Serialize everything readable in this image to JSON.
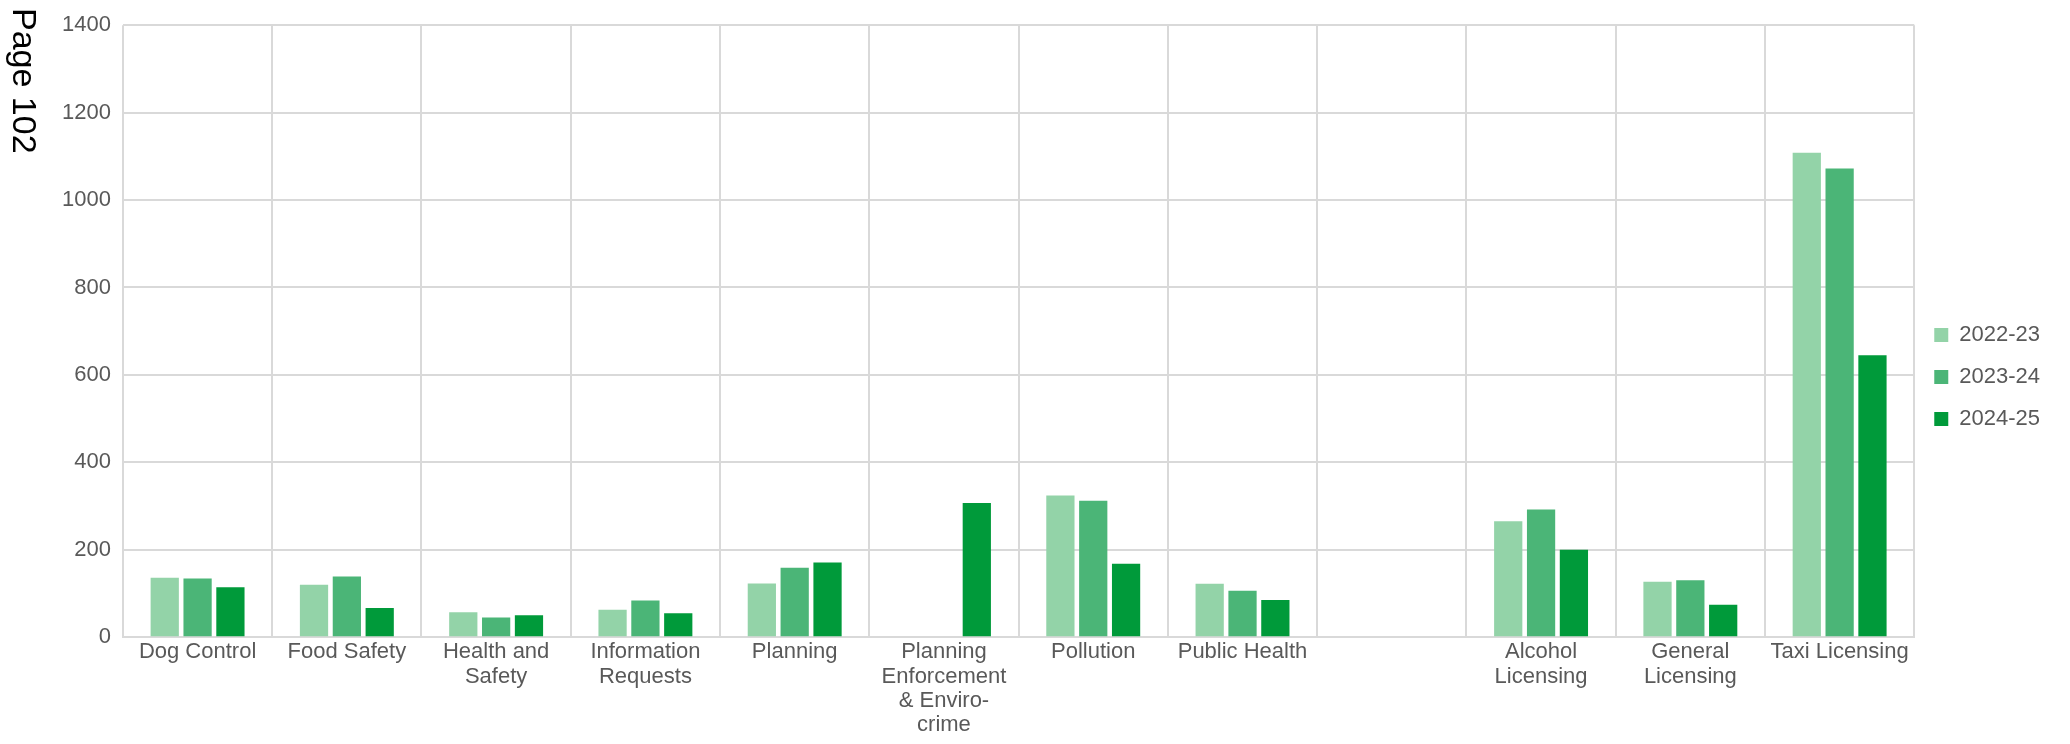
{
  "chart_data": {
    "type": "bar",
    "categories": [
      "Dog Control",
      "Food Safety",
      "Health and Safety",
      "Information Requests",
      "Planning",
      "Planning Enforcement & Enviro-crime",
      "Pollution",
      "Public Health",
      null,
      "Alcohol Licensing",
      "General Licensing",
      "Taxi Licensing"
    ],
    "series": [
      {
        "name": "2022-23",
        "color": "#93d3a8",
        "values": [
          136,
          120,
          57,
          63,
          123,
          null,
          324,
          122,
          null,
          265,
          127,
          1108
        ]
      },
      {
        "name": "2023-24",
        "color": "#4bb577",
        "values": [
          134,
          139,
          45,
          84,
          159,
          null,
          312,
          106,
          null,
          292,
          130,
          1072
        ]
      },
      {
        "name": "2024-25",
        "color": "#009a3a",
        "values": [
          114,
          67,
          50,
          55,
          171,
          307,
          168,
          85,
          null,
          200,
          74,
          645
        ]
      }
    ],
    "ylim": [
      0,
      1400
    ],
    "yticks": [
      0,
      200,
      400,
      600,
      800,
      1000,
      1200,
      1400
    ],
    "grid": true,
    "legend": "right",
    "annotations": [
      "Page 102"
    ]
  }
}
